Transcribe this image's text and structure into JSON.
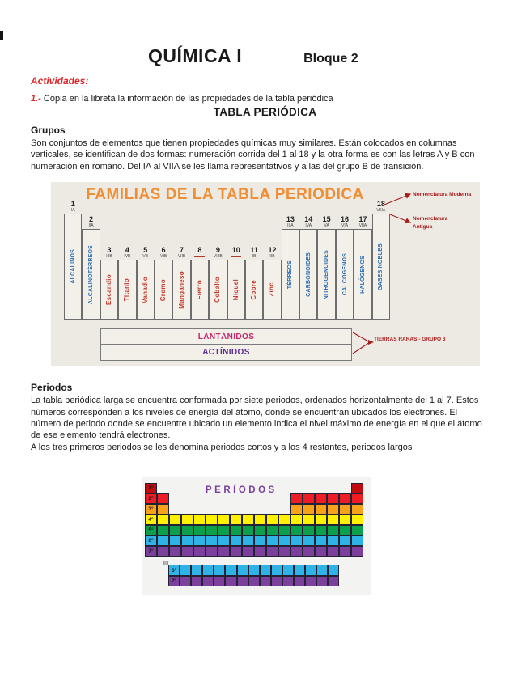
{
  "page": {
    "title": "QUÍMICA I",
    "block": "Bloque 2",
    "activities_heading": "Actividades:",
    "activity_number": "1.-",
    "activity_text": " Copia en la libreta la información de las propiedades de la tabla periódica",
    "main_heading": "TABLA PERIÓDICA"
  },
  "grupos": {
    "heading": "Grupos",
    "body": "Son conjuntos de elementos que tienen propiedades químicas muy similares. Están colocados en columnas verticales, se identifican de dos formas: numeración corrida del 1 al 18 y la otra forma es con las letras A y B con numeración en romano. Del IA al VIIA se les llama representativos y a las del grupo B de transición."
  },
  "familias_figure": {
    "title": "FAMILIAS DE LA TABLA PERIODICA",
    "nomenclatura_moderna": "Nomenclatura Moderna",
    "nomenclatura_antigua": "Nomenclatura Antigua",
    "tierras_raras": "TIERRAS RARAS - GRUPO 3",
    "lantanidos": "LANTÁNIDOS",
    "actinidos": "ACTÍNIDOS",
    "columns": [
      {
        "num": "1",
        "roman": "IA",
        "label": "ALCALINOS"
      },
      {
        "num": "2",
        "roman": "IIA",
        "label": "ALCALINOTÉRREOS"
      },
      {
        "num": "3",
        "roman": "IIIB",
        "label": "Escandio"
      },
      {
        "num": "4",
        "roman": "IVB",
        "label": "Titanio"
      },
      {
        "num": "5",
        "roman": "VB",
        "label": "Vanadio"
      },
      {
        "num": "6",
        "roman": "VIB",
        "label": "Cromo"
      },
      {
        "num": "7",
        "roman": "VIIB",
        "label": "Manganeso"
      },
      {
        "num": "8",
        "roman": "",
        "label": "Fierro"
      },
      {
        "num": "9",
        "roman": "VIIIB",
        "label": "Cobalto"
      },
      {
        "num": "10",
        "roman": "",
        "label": "Níquel"
      },
      {
        "num": "11",
        "roman": "IB",
        "label": "Cobre"
      },
      {
        "num": "12",
        "roman": "IIB",
        "label": "Zinc"
      },
      {
        "num": "13",
        "roman": "IIIA",
        "label": "TÉRREOS"
      },
      {
        "num": "14",
        "roman": "IVA",
        "label": "CARBONOIDES"
      },
      {
        "num": "15",
        "roman": "VA",
        "label": "NITROGENOIDES"
      },
      {
        "num": "16",
        "roman": "VIA",
        "label": "CALCÓGENOS"
      },
      {
        "num": "17",
        "roman": "VIIA",
        "label": "HALÓGENOS"
      },
      {
        "num": "18",
        "roman": "VIIIA",
        "label": "GASES NOBLES"
      }
    ]
  },
  "periodos": {
    "heading": "Periodos",
    "body": "La tabla periódica larga se encuentra conformada por siete periodos, ordenados horizontalmente del 1 al 7. Estos números corresponden a los niveles de energía del átomo, donde se encuentran ubicados los electrones. El número de periodo donde se encuentre ubicado un elemento indica el nivel máximo de energía en el que el átomo de ese elemento tendrá electrones.",
    "body2": "A los tres primeros periodos se les denomina periodos cortos y a los 4 restantes, periodos largos"
  },
  "periodos_figure": {
    "title": "PERÍODOS",
    "rows": [
      {
        "label": "1°",
        "color": "#c00c11",
        "spans": [
          [
            1,
            1
          ],
          [
            18,
            18
          ]
        ]
      },
      {
        "label": "2°",
        "color": "#ee1c25",
        "spans": [
          [
            1,
            2
          ],
          [
            13,
            18
          ]
        ]
      },
      {
        "label": "3°",
        "color": "#f8a11b",
        "spans": [
          [
            1,
            2
          ],
          [
            13,
            18
          ]
        ]
      },
      {
        "label": "4°",
        "color": "#fff101",
        "spans": [
          [
            1,
            18
          ]
        ]
      },
      {
        "label": "5°",
        "color": "#0ba04c",
        "spans": [
          [
            1,
            18
          ]
        ]
      },
      {
        "label": "6°",
        "color": "#2fb3e7",
        "spans": [
          [
            1,
            18
          ]
        ]
      },
      {
        "label": "7°",
        "color": "#7c3f9b",
        "spans": [
          [
            1,
            18
          ]
        ]
      }
    ],
    "island_rows": [
      {
        "label": "6°",
        "color": "#2fb3e7",
        "cells": 15
      },
      {
        "label": "7°",
        "color": "#7c3f9b",
        "cells": 15
      }
    ]
  }
}
